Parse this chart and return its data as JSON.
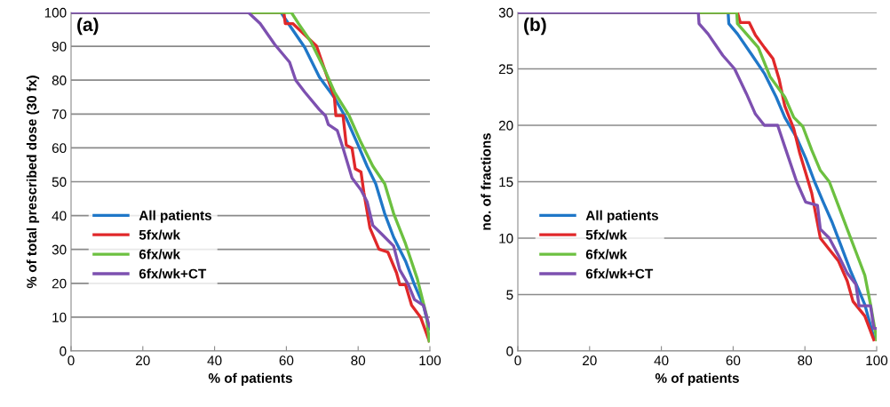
{
  "chart_data": [
    {
      "type": "line",
      "title": "(a)",
      "xlabel": "% of patients",
      "ylabel": "% of total prescribed dose (30 fx)",
      "xlim": [
        0,
        100
      ],
      "xticks": [
        0,
        20,
        40,
        60,
        80,
        100
      ],
      "ylim": [
        0,
        100
      ],
      "yticks": [
        0,
        10,
        20,
        30,
        40,
        50,
        60,
        70,
        80,
        90,
        100
      ],
      "grid": "y",
      "legend": "left",
      "series": [
        {
          "name": "All patients",
          "color": "#1f77c8",
          "x": [
            0,
            58.5,
            60.9,
            65.1,
            69.2,
            73.4,
            76.7,
            80,
            82.5,
            84.9,
            87.4,
            89.9,
            93.2,
            95.7,
            98.2,
            99.8
          ],
          "values": [
            100,
            100,
            96.2,
            89.7,
            80.9,
            74.8,
            68.7,
            60.8,
            54.6,
            49.4,
            40.6,
            33.6,
            26.6,
            19.6,
            13.5,
            6.5
          ]
        },
        {
          "name": "5fx/wk",
          "color": "#e0282a",
          "x": [
            0,
            59.3,
            59.7,
            61.8,
            68.4,
            71.7,
            73.4,
            73.8,
            75.8,
            76.7,
            78.3,
            79.2,
            80.8,
            81.6,
            83.3,
            85.8,
            88.3,
            90.7,
            91.6,
            93.2,
            94.9,
            97.4,
            99.8
          ],
          "values": [
            100,
            100,
            96.7,
            96.7,
            90.1,
            80,
            74.8,
            69.5,
            69.5,
            60.8,
            59.9,
            53.8,
            52.9,
            46.8,
            36.3,
            30.1,
            29.2,
            23.1,
            19.6,
            19.6,
            13.5,
            10,
            3
          ]
        },
        {
          "name": "6fx/wk",
          "color": "#6cc040",
          "x": [
            0,
            61.4,
            63.4,
            66.8,
            70.9,
            73.4,
            77.5,
            80.8,
            84.1,
            87.4,
            89.9,
            93.2,
            96.5,
            99,
            99.8
          ],
          "values": [
            100,
            100,
            96.7,
            91.4,
            82.6,
            76.5,
            69.5,
            61.6,
            54.6,
            49.4,
            40.6,
            31.7,
            21.3,
            10.8,
            3
          ]
        },
        {
          "name": "6fx/wk+CT",
          "color": "#7d50b0",
          "x": [
            0,
            49.4,
            52.7,
            56.8,
            60.9,
            62.6,
            65.1,
            69.2,
            70.9,
            71.7,
            74.2,
            75.8,
            78.3,
            80.8,
            82.5,
            84.1,
            86.6,
            89.9,
            91.6,
            94,
            95.7,
            98.2,
            99.8
          ],
          "values": [
            100,
            100,
            96.7,
            90.5,
            85.3,
            80,
            76.5,
            71.3,
            69.5,
            66.9,
            65.1,
            59.9,
            51.1,
            47.6,
            44.1,
            37.1,
            34.5,
            31,
            24,
            19.6,
            15.2,
            13.5,
            7.4
          ]
        }
      ]
    },
    {
      "type": "line",
      "title": "(b)",
      "xlabel": "% of patients",
      "ylabel": "no. of fractions",
      "xlim": [
        0,
        100
      ],
      "xticks": [
        0,
        20,
        40,
        60,
        80,
        100
      ],
      "ylim": [
        0,
        30
      ],
      "yticks": [
        0,
        5,
        10,
        15,
        20,
        25,
        30
      ],
      "grid": "y",
      "legend": "left",
      "series": [
        {
          "name": "All patients",
          "color": "#1f77c8",
          "x": [
            0,
            58.6,
            58.8,
            61.2,
            65.3,
            68.7,
            72,
            74.4,
            77.7,
            80.2,
            82.7,
            85.1,
            87.6,
            90.1,
            92.6,
            95,
            96.7,
            99.2
          ],
          "values": [
            30,
            30,
            29,
            28.1,
            26.2,
            24.6,
            22.5,
            20.7,
            18.9,
            17.1,
            15,
            13.2,
            11.4,
            9.3,
            7.2,
            5.4,
            4.1,
            1.2
          ]
        },
        {
          "name": "5fx/wk",
          "color": "#e0282a",
          "x": [
            0,
            61.2,
            62,
            64.5,
            66.2,
            68.7,
            71.1,
            72.8,
            74.4,
            76.9,
            78.5,
            80.2,
            81.9,
            84.3,
            86.8,
            89.3,
            91.8,
            93.4,
            96.7,
            99.2
          ],
          "values": [
            30,
            30,
            29.1,
            29.1,
            28,
            26.9,
            25.9,
            24.1,
            21.7,
            19.7,
            17.6,
            15.8,
            14,
            10,
            9,
            8,
            6.2,
            4.4,
            3.1,
            1
          ]
        },
        {
          "name": "6fx/wk",
          "color": "#6cc040",
          "x": [
            0,
            61,
            61.2,
            63.7,
            67,
            70.3,
            74.4,
            76.9,
            79.4,
            81.9,
            84.3,
            86.8,
            89.3,
            91.8,
            94.2,
            96.7,
            98.3,
            100
          ],
          "values": [
            30,
            30,
            29,
            28.1,
            26.9,
            24.3,
            22.5,
            20.7,
            19.9,
            17.8,
            16,
            15,
            12.9,
            10.8,
            8.8,
            6.7,
            4.1,
            1
          ]
        },
        {
          "name": "6fx/wk+CT",
          "color": "#7d50b0",
          "x": [
            0,
            50.3,
            50.5,
            53,
            57.1,
            60.4,
            63.7,
            66.2,
            68.7,
            72.4,
            74.4,
            77.7,
            80.2,
            83.5,
            84.3,
            86.8,
            89.3,
            91.8,
            94.2,
            95.1,
            98.3,
            99.2,
            100
          ],
          "values": [
            30,
            30,
            29,
            28.1,
            26.2,
            25,
            22.8,
            21,
            20,
            20,
            18.1,
            15,
            13.2,
            12.9,
            10.8,
            10,
            8.5,
            6.9,
            5.9,
            4,
            4,
            2,
            2
          ]
        }
      ]
    }
  ]
}
